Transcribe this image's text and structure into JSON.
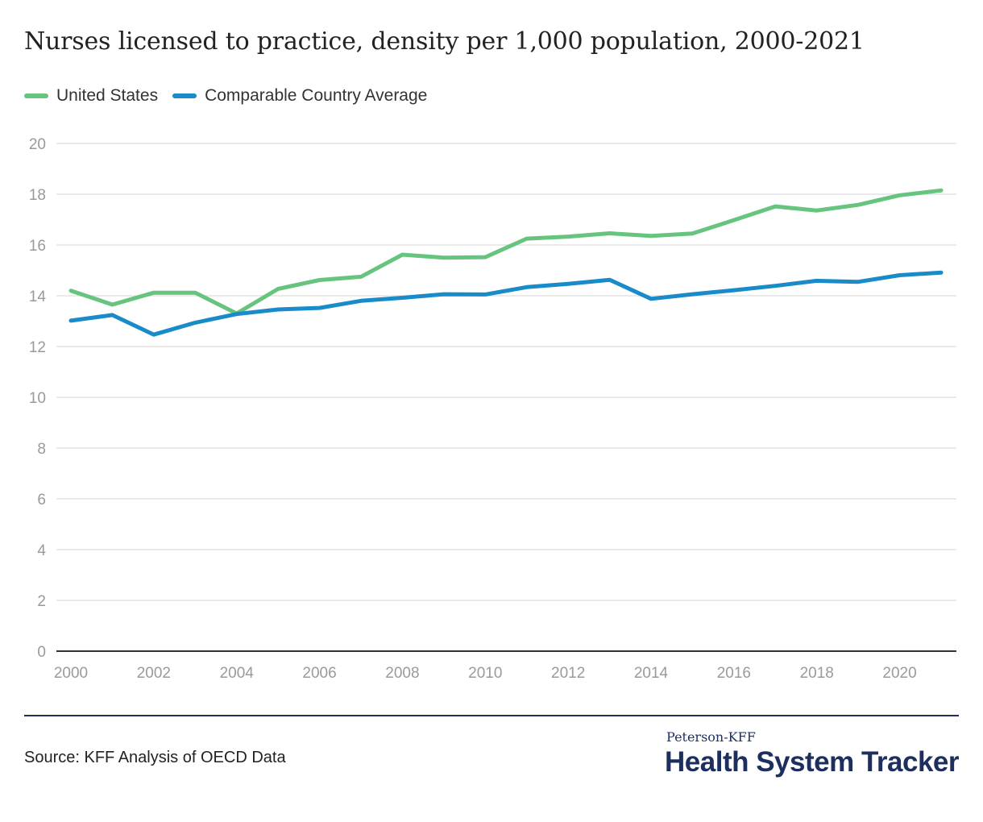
{
  "title": "Nurses licensed to practice, density per 1,000 population, 2000-2021",
  "legend": [
    {
      "label": "United States",
      "color": "#67c47e"
    },
    {
      "label": "Comparable Country Average",
      "color": "#1a8bc9"
    }
  ],
  "chart_data": {
    "type": "line",
    "title": "Nurses licensed to practice, density per 1,000 population, 2000-2021",
    "xlabel": "",
    "ylabel": "",
    "x": [
      2000,
      2001,
      2002,
      2003,
      2004,
      2005,
      2006,
      2007,
      2008,
      2009,
      2010,
      2011,
      2012,
      2013,
      2014,
      2015,
      2016,
      2017,
      2018,
      2019,
      2020,
      2021
    ],
    "xlim": [
      2000,
      2021
    ],
    "ylim": [
      0,
      20
    ],
    "x_ticks": [
      "2000",
      "2002",
      "2004",
      "2006",
      "2008",
      "2010",
      "2012",
      "2014",
      "2016",
      "2018",
      "2020"
    ],
    "y_ticks": [
      "0",
      "2",
      "4",
      "6",
      "8",
      "10",
      "12",
      "14",
      "16",
      "18",
      "20"
    ],
    "grid": true,
    "legend_position": "top-left",
    "series": [
      {
        "name": "United States",
        "color": "#67c47e",
        "values": [
          14.2,
          13.65,
          14.12,
          14.12,
          13.3,
          14.27,
          14.62,
          14.75,
          15.62,
          15.5,
          15.52,
          16.25,
          16.33,
          16.46,
          16.36,
          16.45,
          16.98,
          17.52,
          17.36,
          17.58,
          17.96,
          18.15
        ]
      },
      {
        "name": "Comparable Country Average",
        "color": "#1a8bc9",
        "values": [
          13.02,
          13.24,
          12.47,
          12.94,
          13.28,
          13.46,
          13.52,
          13.8,
          13.92,
          14.06,
          14.05,
          14.34,
          14.47,
          14.63,
          13.88,
          14.06,
          14.22,
          14.39,
          14.59,
          14.55,
          14.81,
          14.91
        ]
      }
    ]
  },
  "footer": {
    "source": "Source: KFF Analysis of OECD Data",
    "brand_top": "Peterson-KFF",
    "brand_main": "Health System Tracker"
  }
}
